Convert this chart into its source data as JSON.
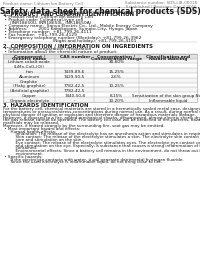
{
  "header_left": "Product name: Lithium Ion Battery Cell",
  "header_right_line1": "Substance number: SDS-LIB-00018",
  "header_right_line2": "Established / Revision: Dec.7 2016",
  "title": "Safety data sheet for chemical products (SDS)",
  "section1_title": "1. PRODUCT AND COMPANY IDENTIFICATION",
  "section1_lines": [
    " • Product name: Lithium Ion Battery Cell",
    " • Product code: Cylindrical-type cell",
    "     (INR18650U, INR18650L, INR18650A)",
    " • Company name:  Sanyo Electric Co., Ltd., Mobile Energy Company",
    " • Address:        2001 Kamikotoen, Sumoto-City, Hyogo, Japan",
    " • Telephone number:  +81-799-26-4111",
    " • Fax number:  +81-799-26-4129",
    " • Emergency telephone number (Weekday): +81-799-26-3962",
    "                                    (Night and holiday): +81-799-26-4101"
  ],
  "section2_title": "2. COMPOSITION / INFORMATION ON INGREDIENTS",
  "section2_sub1": " • Substance or preparation: Preparation",
  "section2_sub2": " • Information about the chemical nature of product:",
  "col_labels_row1": [
    "Component / Generic name",
    "CAS number",
    "Concentration / Concentration range",
    "Classification and hazard labeling"
  ],
  "table_rows": [
    [
      "Lithium cobalt oxide",
      "-",
      "30-60%",
      ""
    ],
    [
      "(LiMn-CoO₂(O))",
      "",
      "",
      ""
    ],
    [
      "Iron",
      "7439-89-6",
      "15-25%",
      ""
    ],
    [
      "Aluminum",
      "7429-90-5",
      "2-6%",
      ""
    ],
    [
      "Graphite",
      "",
      "",
      ""
    ],
    [
      "(Flaky graphite)",
      "7782-42-5",
      "10-25%",
      ""
    ],
    [
      "(Artificial graphite)",
      "7782-42-5",
      "",
      ""
    ],
    [
      "Copper",
      "7440-50-8",
      "8-15%",
      "Sensitization of the skin group No.2"
    ],
    [
      "Organic electrolyte",
      "-",
      "10-20%",
      "Inflammable liquid"
    ]
  ],
  "section3_title": "3. HAZARDS IDENTIFICATION",
  "section3_lines": [
    "For the battery cell, chemical materials are stored in a hermetically sealed metal case, designed to withstand",
    "temperatures or pressures/stress-concentrations during normal use. As a result, during normal use, there is no",
    "physical danger of ignition or explosion and therefore danger of hazardous materials leakage.",
    "However, if exposed to a fire, added mechanical shocks, decomposed, almost electric shorts dry misuse,",
    "the gas release cannot be operated. The battery cell case will be breached of fire-patterns, hazardous",
    "materials may be released.",
    "Moreover, if heated strongly by the surrounding fire, soot gas may be emitted.",
    " • Most important hazard and effects:",
    "      Human health effects:",
    "          Inhalation: The release of the electrolyte has an anesthesia action and stimulates in respiratory tract.",
    "          Skin contact: The release of the electrolyte stimulates a skin. The electrolyte skin contact causes a",
    "          sore and stimulation on the skin.",
    "          Eye contact: The release of the electrolyte stimulates eyes. The electrolyte eye contact causes a sore",
    "          and stimulation on the eye. Especially, a substance that causes a strong inflammation of the eye is",
    "          contained.",
    "          Environmental effects: Since a battery cell remains in the environment, do not throw out it into the",
    "          environment.",
    " • Specific hazards:",
    "      If the electrolyte contacts with water, it will generate detrimental hydrogen fluoride.",
    "      Since the used electrolyte is inflammable liquid, do not bring close to fire."
  ],
  "bg_color": "#ffffff",
  "text_color": "#1a1a1a",
  "gray_text": "#777777",
  "line_color": "#bbbbbb",
  "table_header_bg": "#e0e0e0",
  "table_alt_bg": "#f5f5f5"
}
